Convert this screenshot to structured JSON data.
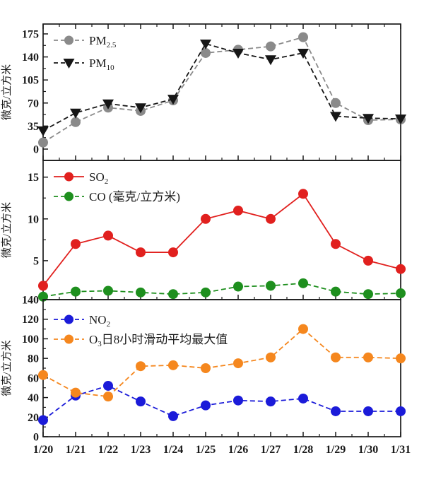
{
  "figure": {
    "background": "#ffffff",
    "x_categories": [
      "1/20",
      "1/21",
      "1/22",
      "1/23",
      "1/24",
      "1/25",
      "1/26",
      "1/27",
      "1/28",
      "1/29",
      "1/30",
      "1/31"
    ],
    "axis_color": "#1a1a1a"
  },
  "chart_data": [
    {
      "type": "line",
      "panel_id": "pm-panel",
      "ylabel": "微克/立方米",
      "yticks": [
        0,
        35,
        70,
        105,
        140,
        175
      ],
      "ylim": [
        -17.2,
        190
      ],
      "legend_position": "top-left",
      "grid": false,
      "categories": [
        "1/20",
        "1/21",
        "1/22",
        "1/23",
        "1/24",
        "1/25",
        "1/26",
        "1/27",
        "1/28",
        "1/29",
        "1/30",
        "1/31"
      ],
      "series": [
        {
          "name": "PM2.5",
          "legend_main": "PM",
          "legend_sub": "2.5",
          "legend_rest": "",
          "color": "#8a8a8a",
          "marker": "circle",
          "line_style": "dashed",
          "values": [
            10,
            41,
            63,
            58,
            74,
            146,
            151,
            156,
            170,
            70,
            44,
            45
          ]
        },
        {
          "name": "PM10",
          "legend_main": "PM",
          "legend_sub": "10",
          "legend_rest": "",
          "color": "#161616",
          "marker": "triangle-down",
          "line_style": "dashed",
          "values": [
            28,
            55,
            69,
            63,
            76,
            160,
            146,
            136,
            146,
            50,
            47,
            46
          ]
        }
      ]
    },
    {
      "type": "line",
      "panel_id": "so2-co-panel",
      "ylabel": "微克/立方米",
      "yticks": [
        5,
        10,
        15
      ],
      "ylim": [
        0.34,
        17.0
      ],
      "legend_position": "top-left",
      "grid": false,
      "categories": [
        "1/20",
        "1/21",
        "1/22",
        "1/23",
        "1/24",
        "1/25",
        "1/26",
        "1/27",
        "1/28",
        "1/29",
        "1/30",
        "1/31"
      ],
      "series": [
        {
          "name": "SO2",
          "legend_main": "SO",
          "legend_sub": "2",
          "legend_rest": "",
          "color": "#e1201e",
          "marker": "circle",
          "line_style": "solid",
          "values": [
            2,
            7,
            8,
            6,
            6,
            10,
            11,
            10,
            13,
            7,
            5,
            4
          ]
        },
        {
          "name": "CO",
          "legend_main": "CO (毫克/立方米)",
          "legend_sub": "",
          "legend_rest": "",
          "color": "#1e8f1e",
          "marker": "circle",
          "line_style": "dashed",
          "values": [
            0.7,
            1.3,
            1.4,
            1.2,
            1.0,
            1.2,
            1.9,
            2.0,
            2.3,
            1.3,
            1.0,
            1.1
          ]
        }
      ]
    },
    {
      "type": "line",
      "panel_id": "no2-o3-panel",
      "ylabel": "微克/立方米",
      "yticks": [
        0,
        20,
        40,
        60,
        80,
        100,
        120,
        140
      ],
      "ylim": [
        0,
        140
      ],
      "legend_position": "top-left",
      "grid": false,
      "categories": [
        "1/20",
        "1/21",
        "1/22",
        "1/23",
        "1/24",
        "1/25",
        "1/26",
        "1/27",
        "1/28",
        "1/29",
        "1/30",
        "1/31"
      ],
      "series": [
        {
          "name": "NO2",
          "legend_main": "NO",
          "legend_sub": "2",
          "legend_rest": "",
          "color": "#1b1bd9",
          "marker": "circle",
          "line_style": "dashed",
          "values": [
            17,
            42,
            52,
            36,
            21,
            32,
            37,
            36,
            39,
            26,
            26,
            26
          ]
        },
        {
          "name": "O3",
          "legend_main": "O",
          "legend_sub": "3",
          "legend_rest": "日8小时滑动平均最大值",
          "color": "#f5871e",
          "marker": "circle",
          "line_style": "dashed",
          "values": [
            63,
            45,
            41,
            72,
            73,
            70,
            75,
            81,
            110,
            81,
            81,
            80
          ]
        }
      ]
    }
  ]
}
